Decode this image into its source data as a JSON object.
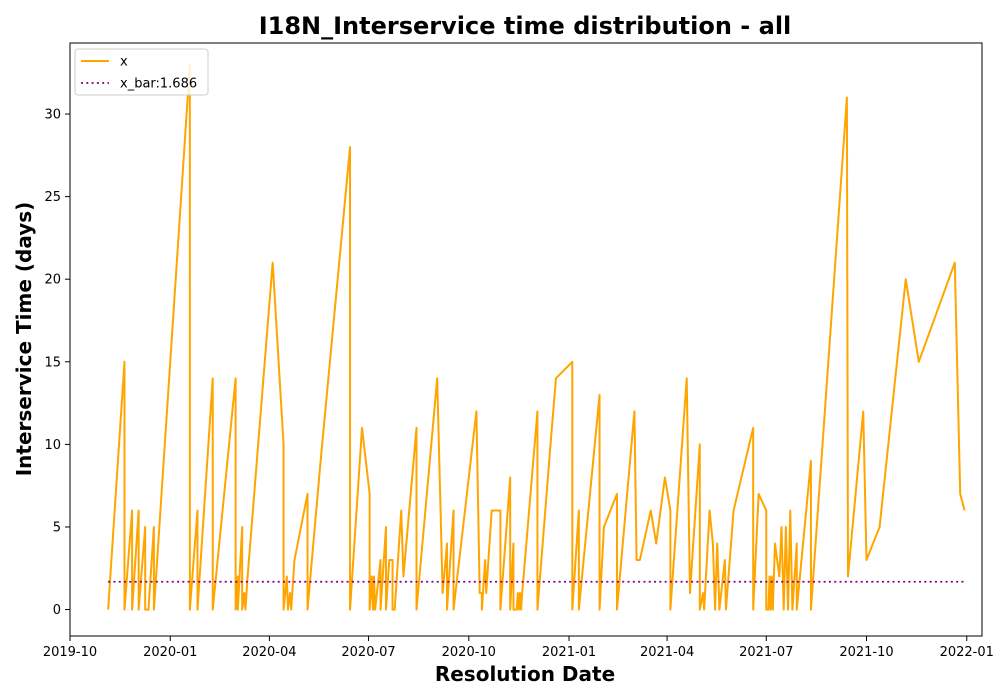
{
  "chart_data": {
    "type": "line",
    "title": "I18N_Interservice time distribution - all",
    "xlabel": "Resolution Date",
    "ylabel": "Interservice Time (days)",
    "xlim": [
      "2019-10-01",
      "2022-01-15"
    ],
    "ylim": [
      -1.6,
      34.3
    ],
    "x_ticks": [
      "2019-10-01",
      "2020-01-01",
      "2020-04-01",
      "2020-07-01",
      "2020-10-01",
      "2021-01-01",
      "2021-04-01",
      "2021-07-01",
      "2021-10-01",
      "2022-01-01"
    ],
    "x_tick_labels": [
      "2019-10",
      "2020-01",
      "2020-04",
      "2020-07",
      "2020-10",
      "2021-01",
      "2021-04",
      "2021-07",
      "2021-10",
      "2022-01"
    ],
    "y_ticks": [
      0,
      5,
      10,
      15,
      20,
      25,
      30
    ],
    "y_tick_labels": [
      "0",
      "5",
      "10",
      "15",
      "20",
      "25",
      "30"
    ],
    "grid": false,
    "legend_position": "top-left",
    "series": [
      {
        "name": "x",
        "color": "#FFA500",
        "style": "solid",
        "points": [
          [
            "2019-11-05",
            0
          ],
          [
            "2019-11-20",
            15
          ],
          [
            "2019-11-20",
            0
          ],
          [
            "2019-11-27",
            6
          ],
          [
            "2019-11-27",
            0
          ],
          [
            "2019-12-03",
            6
          ],
          [
            "2019-12-03",
            0
          ],
          [
            "2019-12-09",
            5
          ],
          [
            "2019-12-09",
            0
          ],
          [
            "2019-12-12",
            0
          ],
          [
            "2019-12-17",
            5
          ],
          [
            "2019-12-17",
            0
          ],
          [
            "2020-01-19",
            33
          ],
          [
            "2020-01-19",
            0
          ],
          [
            "2020-01-26",
            6
          ],
          [
            "2020-01-26",
            0
          ],
          [
            "2020-02-09",
            14
          ],
          [
            "2020-02-09",
            0
          ],
          [
            "2020-03-01",
            14
          ],
          [
            "2020-03-01",
            0
          ],
          [
            "2020-03-03",
            2
          ],
          [
            "2020-03-03",
            0
          ],
          [
            "2020-03-07",
            5
          ],
          [
            "2020-03-07",
            0
          ],
          [
            "2020-03-09",
            1
          ],
          [
            "2020-03-10",
            0
          ],
          [
            "2020-03-12",
            2
          ],
          [
            "2020-04-04",
            21
          ],
          [
            "2020-04-14",
            10
          ],
          [
            "2020-04-14",
            0
          ],
          [
            "2020-04-17",
            2
          ],
          [
            "2020-04-18",
            0
          ],
          [
            "2020-04-20",
            1
          ],
          [
            "2020-04-21",
            0
          ],
          [
            "2020-04-24",
            3
          ],
          [
            "2020-05-06",
            7
          ],
          [
            "2020-05-06",
            0
          ],
          [
            "2020-05-18",
            9
          ],
          [
            "2020-06-14",
            28
          ],
          [
            "2020-06-14",
            0
          ],
          [
            "2020-06-25",
            11
          ],
          [
            "2020-07-02",
            7
          ],
          [
            "2020-07-02",
            0
          ],
          [
            "2020-07-04",
            2
          ],
          [
            "2020-07-05",
            0
          ],
          [
            "2020-07-06",
            2
          ],
          [
            "2020-07-07",
            0
          ],
          [
            "2020-07-12",
            3
          ],
          [
            "2020-07-12",
            0
          ],
          [
            "2020-07-17",
            5
          ],
          [
            "2020-07-17",
            0
          ],
          [
            "2020-07-20",
            3
          ],
          [
            "2020-07-23",
            3
          ],
          [
            "2020-07-23",
            0
          ],
          [
            "2020-07-25",
            0
          ],
          [
            "2020-07-31",
            6
          ],
          [
            "2020-08-02",
            2
          ],
          [
            "2020-08-14",
            11
          ],
          [
            "2020-08-14",
            0
          ],
          [
            "2020-09-02",
            14
          ],
          [
            "2020-09-07",
            1
          ],
          [
            "2020-09-11",
            4
          ],
          [
            "2020-09-11",
            0
          ],
          [
            "2020-09-17",
            6
          ],
          [
            "2020-09-17",
            0
          ],
          [
            "2020-10-08",
            12
          ],
          [
            "2020-10-11",
            1
          ],
          [
            "2020-10-13",
            1
          ],
          [
            "2020-10-13",
            0
          ],
          [
            "2020-10-16",
            3
          ],
          [
            "2020-10-17",
            1
          ],
          [
            "2020-10-22",
            6
          ],
          [
            "2020-10-30",
            6
          ],
          [
            "2020-10-30",
            0
          ],
          [
            "2020-11-08",
            8
          ],
          [
            "2020-11-08",
            0
          ],
          [
            "2020-11-11",
            4
          ],
          [
            "2020-11-11",
            0
          ],
          [
            "2020-11-14",
            0
          ],
          [
            "2020-11-15",
            1
          ],
          [
            "2020-11-16",
            0
          ],
          [
            "2020-11-17",
            1
          ],
          [
            "2020-11-18",
            0
          ],
          [
            "2020-11-19",
            1
          ],
          [
            "2020-12-03",
            12
          ],
          [
            "2020-12-03",
            0
          ],
          [
            "2020-12-15",
            10
          ],
          [
            "2020-12-20",
            14
          ],
          [
            "2021-01-04",
            15
          ],
          [
            "2021-01-04",
            0
          ],
          [
            "2021-01-10",
            6
          ],
          [
            "2021-01-10",
            0
          ],
          [
            "2021-01-29",
            13
          ],
          [
            "2021-01-29",
            0
          ],
          [
            "2021-02-02",
            5
          ],
          [
            "2021-02-14",
            7
          ],
          [
            "2021-02-14",
            0
          ],
          [
            "2021-03-02",
            12
          ],
          [
            "2021-03-04",
            3
          ],
          [
            "2021-03-07",
            3
          ],
          [
            "2021-03-17",
            6
          ],
          [
            "2021-03-22",
            4
          ],
          [
            "2021-03-30",
            8
          ],
          [
            "2021-04-04",
            6
          ],
          [
            "2021-04-04",
            0
          ],
          [
            "2021-04-19",
            14
          ],
          [
            "2021-04-22",
            1
          ],
          [
            "2021-05-01",
            10
          ],
          [
            "2021-05-01",
            0
          ],
          [
            "2021-05-04",
            1
          ],
          [
            "2021-05-05",
            0
          ],
          [
            "2021-05-10",
            6
          ],
          [
            "2021-05-13",
            4
          ],
          [
            "2021-05-15",
            0
          ],
          [
            "2021-05-17",
            4
          ],
          [
            "2021-05-19",
            0
          ],
          [
            "2021-05-24",
            3
          ],
          [
            "2021-05-25",
            0
          ],
          [
            "2021-06-01",
            6
          ],
          [
            "2021-06-19",
            11
          ],
          [
            "2021-06-19",
            0
          ],
          [
            "2021-06-24",
            7
          ],
          [
            "2021-07-01",
            6
          ],
          [
            "2021-07-01",
            0
          ],
          [
            "2021-07-03",
            0
          ],
          [
            "2021-07-04",
            2
          ],
          [
            "2021-07-05",
            0
          ],
          [
            "2021-07-06",
            2
          ],
          [
            "2021-07-07",
            0
          ],
          [
            "2021-07-09",
            4
          ],
          [
            "2021-07-13",
            2
          ],
          [
            "2021-07-15",
            5
          ],
          [
            "2021-07-17",
            0
          ],
          [
            "2021-07-19",
            5
          ],
          [
            "2021-07-21",
            0
          ],
          [
            "2021-07-23",
            6
          ],
          [
            "2021-07-25",
            0
          ],
          [
            "2021-07-29",
            4
          ],
          [
            "2021-07-29",
            0
          ],
          [
            "2021-08-11",
            9
          ],
          [
            "2021-08-11",
            0
          ],
          [
            "2021-09-13",
            31
          ],
          [
            "2021-09-14",
            2
          ],
          [
            "2021-09-28",
            12
          ],
          [
            "2021-10-01",
            3
          ],
          [
            "2021-10-13",
            5
          ],
          [
            "2021-11-06",
            20
          ],
          [
            "2021-11-18",
            15
          ],
          [
            "2021-12-21",
            21
          ],
          [
            "2021-12-26",
            7
          ],
          [
            "2021-12-30",
            6
          ]
        ]
      },
      {
        "name": "x_bar:1.686",
        "color": "#800080",
        "style": "dotted",
        "points": [
          [
            "2019-11-05",
            1.686
          ],
          [
            "2021-12-30",
            1.686
          ]
        ]
      }
    ]
  }
}
